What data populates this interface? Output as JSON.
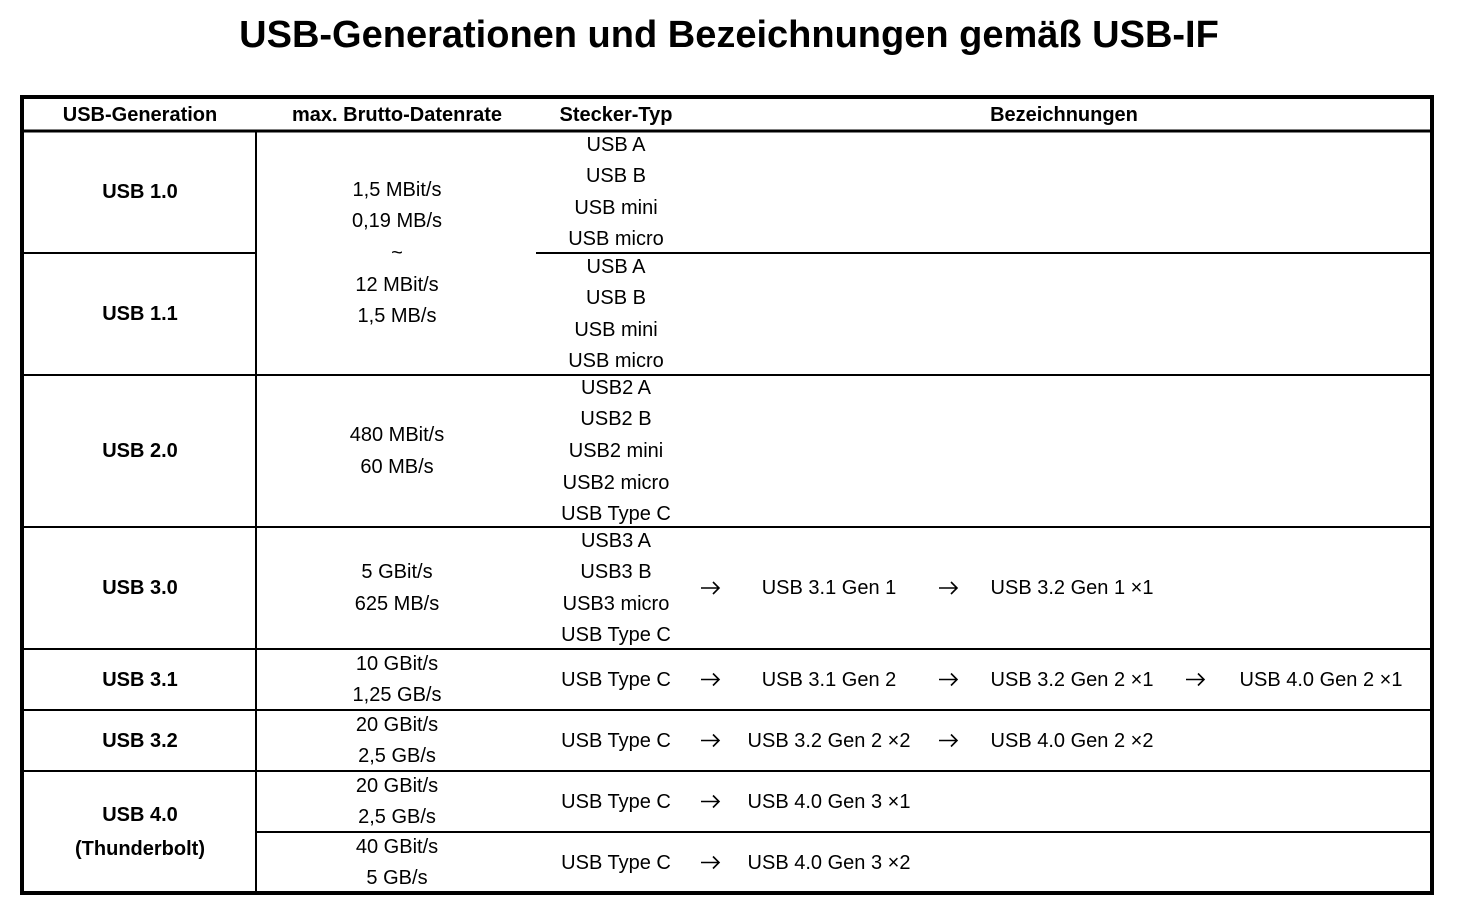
{
  "title": "USB-Generationen und Bezeichnungen gemäß USB-IF",
  "table": {
    "header": [
      "USB-Generation",
      "max. Brutto-Datenrate",
      "Stecker-Typ",
      "Bezeichnungen"
    ],
    "rows": [
      {
        "generation": [
          "USB 1.0"
        ],
        "rate": [
          "1,5 MBit/s",
          "0,19 MB/s",
          "~",
          "12 MBit/s",
          "1,5 MB/s"
        ],
        "connectors": [
          "USB A",
          "USB B",
          "USB mini",
          "USB micro"
        ]
      },
      {
        "generation": [
          "USB 1.1"
        ],
        "connectors": [
          "USB A",
          "USB B",
          "USB mini",
          "USB micro"
        ]
      },
      {
        "generation": [
          "USB 2.0"
        ],
        "rate": [
          "480 MBit/s",
          "60 MB/s"
        ],
        "connectors": [
          "USB2 A",
          "USB2 B",
          "USB2 mini",
          "USB2 micro",
          "USB Type C"
        ]
      },
      {
        "generation": [
          "USB 3.0"
        ],
        "rate": [
          "5 GBit/s",
          "625 MB/s"
        ],
        "connectors": [
          "USB3 A",
          "USB3 B",
          "USB3 micro",
          "USB Type C"
        ],
        "designations": [
          "USB 3.1 Gen 1",
          "USB 3.2 Gen 1 ×1"
        ]
      },
      {
        "generation": [
          "USB 3.1"
        ],
        "rate": [
          "10 GBit/s",
          "1,25 GB/s"
        ],
        "connectors": [
          "USB Type C"
        ],
        "designations": [
          "USB 3.1 Gen 2",
          "USB 3.2 Gen 2 ×1",
          "USB 4.0 Gen 2 ×1"
        ]
      },
      {
        "generation": [
          "USB 3.2"
        ],
        "rate": [
          "20 GBit/s",
          "2,5 GB/s"
        ],
        "connectors": [
          "USB Type C"
        ],
        "designations": [
          "USB 3.2 Gen 2 ×2",
          "USB 4.0 Gen 2 ×2"
        ]
      },
      {
        "generation": [
          "USB 4.0",
          "(Thunderbolt)"
        ],
        "rate": [
          "20 GBit/s",
          "2,5 GB/s"
        ],
        "connectors": [
          "USB Type C"
        ],
        "designations": [
          "USB 4.0 Gen 3 ×1"
        ]
      },
      {
        "rate": [
          "40 GBit/s",
          "5 GB/s"
        ],
        "connectors": [
          "USB Type C"
        ],
        "designations": [
          "USB 4.0 Gen 3 ×2"
        ]
      }
    ]
  }
}
